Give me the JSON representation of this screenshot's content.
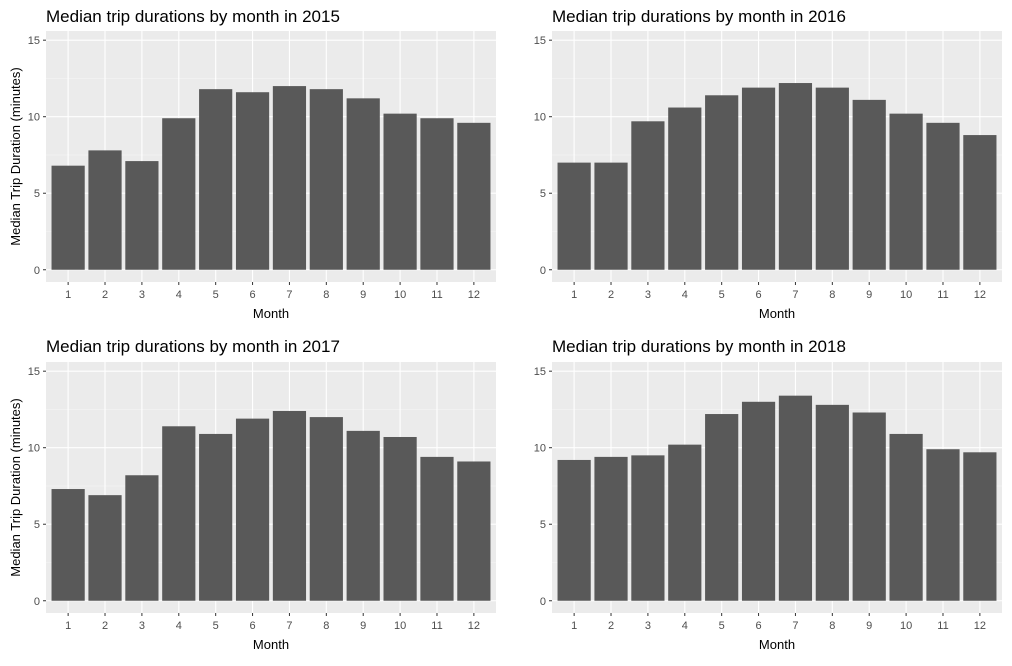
{
  "colors": {
    "panel_background": "#ebebeb",
    "grid_major": "#ffffff",
    "grid_minor": "#f5f5f5",
    "bar_fill": "#595959",
    "tick_text": "#4d4d4d",
    "text": "#000000"
  },
  "chart_data": [
    {
      "type": "bar",
      "title": "Median trip durations by month in 2015",
      "xlabel": "Month",
      "ylabel": "Median Trip Duration (minutes)",
      "categories": [
        "1",
        "2",
        "3",
        "4",
        "5",
        "6",
        "7",
        "8",
        "9",
        "10",
        "11",
        "12"
      ],
      "values": [
        6.8,
        7.8,
        7.1,
        9.9,
        11.8,
        11.6,
        12.0,
        11.8,
        11.2,
        10.2,
        9.9,
        9.6
      ],
      "ylim": [
        -0.8,
        15.6
      ],
      "yticks": [
        0,
        5,
        10,
        15
      ],
      "grid": true
    },
    {
      "type": "bar",
      "title": "Median trip durations by month in 2016",
      "xlabel": "Month",
      "ylabel": "",
      "categories": [
        "1",
        "2",
        "3",
        "4",
        "5",
        "6",
        "7",
        "8",
        "9",
        "10",
        "11",
        "12"
      ],
      "values": [
        7.0,
        7.0,
        9.7,
        10.6,
        11.4,
        11.9,
        12.2,
        11.9,
        11.1,
        10.2,
        9.6,
        8.8
      ],
      "ylim": [
        -0.8,
        15.6
      ],
      "yticks": [
        0,
        5,
        10,
        15
      ],
      "grid": true
    },
    {
      "type": "bar",
      "title": "Median trip durations by month in 2017",
      "xlabel": "Month",
      "ylabel": "Median Trip Duration (minutes)",
      "categories": [
        "1",
        "2",
        "3",
        "4",
        "5",
        "6",
        "7",
        "8",
        "9",
        "10",
        "11",
        "12"
      ],
      "values": [
        7.3,
        6.9,
        8.2,
        11.4,
        10.9,
        11.9,
        12.4,
        12.0,
        11.1,
        10.7,
        9.4,
        9.1
      ],
      "ylim": [
        -0.8,
        15.6
      ],
      "yticks": [
        0,
        5,
        10,
        15
      ],
      "grid": true
    },
    {
      "type": "bar",
      "title": "Median trip durations by month in 2018",
      "xlabel": "Month",
      "ylabel": "",
      "categories": [
        "1",
        "2",
        "3",
        "4",
        "5",
        "6",
        "7",
        "8",
        "9",
        "10",
        "11",
        "12"
      ],
      "values": [
        9.2,
        9.4,
        9.5,
        10.2,
        12.2,
        13.0,
        13.4,
        12.8,
        12.3,
        10.9,
        9.9,
        9.7
      ],
      "ylim": [
        -0.8,
        15.6
      ],
      "yticks": [
        0,
        5,
        10,
        15
      ],
      "grid": true
    }
  ]
}
